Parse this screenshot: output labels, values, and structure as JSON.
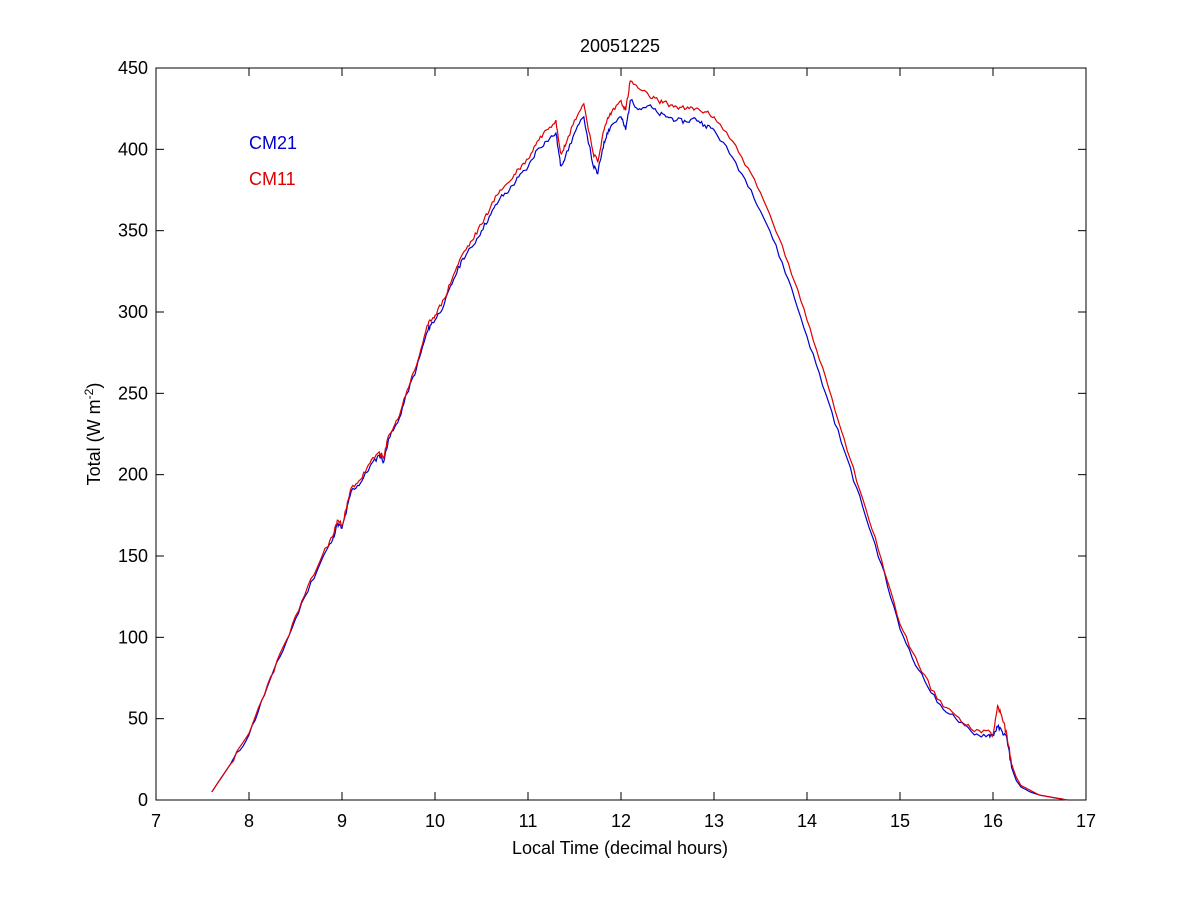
{
  "chart_data": {
    "type": "line",
    "title": "20051225",
    "xlabel": "Local Time (decimal hours)",
    "ylabel": {
      "prefix": "Total (W m",
      "superscript": "-2",
      "suffix": ")"
    },
    "xlim": [
      7,
      17
    ],
    "ylim": [
      0,
      450
    ],
    "xticks": [
      7,
      8,
      9,
      10,
      11,
      12,
      13,
      14,
      15,
      16,
      17
    ],
    "yticks": [
      0,
      50,
      100,
      150,
      200,
      250,
      300,
      350,
      400,
      450
    ],
    "grid": false,
    "legend_position": "top-left",
    "series": [
      {
        "name": "CM21",
        "color": "#0000cc",
        "x": [
          7.6,
          7.8,
          8.0,
          8.2,
          8.4,
          8.6,
          8.8,
          8.9,
          8.95,
          9.0,
          9.05,
          9.1,
          9.2,
          9.3,
          9.4,
          9.45,
          9.5,
          9.6,
          9.7,
          9.8,
          9.9,
          9.95,
          10.0,
          10.1,
          10.2,
          10.3,
          10.4,
          10.5,
          10.6,
          10.7,
          10.8,
          10.9,
          11.0,
          11.1,
          11.2,
          11.3,
          11.35,
          11.4,
          11.5,
          11.6,
          11.7,
          11.75,
          11.8,
          11.85,
          11.9,
          12.0,
          12.05,
          12.1,
          12.2,
          12.3,
          12.4,
          12.5,
          12.6,
          12.7,
          12.8,
          12.9,
          13.0,
          13.2,
          13.4,
          13.6,
          13.8,
          14.0,
          14.2,
          14.4,
          14.6,
          14.8,
          15.0,
          15.2,
          15.4,
          15.6,
          15.8,
          15.95,
          16.0,
          16.05,
          16.1,
          16.15,
          16.2,
          16.25,
          16.3,
          16.4,
          16.5,
          16.6,
          16.7,
          16.8
        ],
        "y": [
          5,
          22,
          40,
          70,
          97,
          125,
          150,
          160,
          170,
          167,
          178,
          190,
          195,
          205,
          212,
          208,
          222,
          232,
          250,
          265,
          285,
          292,
          295,
          305,
          320,
          333,
          340,
          350,
          360,
          370,
          375,
          383,
          389,
          400,
          405,
          410,
          390,
          395,
          410,
          420,
          390,
          385,
          400,
          410,
          415,
          420,
          412,
          430,
          425,
          427,
          422,
          420,
          418,
          417,
          419,
          415,
          412,
          395,
          375,
          350,
          320,
          285,
          250,
          215,
          180,
          145,
          105,
          80,
          60,
          50,
          40,
          40,
          40,
          45,
          42,
          38,
          20,
          12,
          8,
          5,
          3,
          2,
          1,
          0
        ],
        "seed": 11
      },
      {
        "name": "CM11",
        "color": "#dd0000",
        "x": [
          7.6,
          7.8,
          8.0,
          8.2,
          8.4,
          8.6,
          8.8,
          8.9,
          8.95,
          9.0,
          9.05,
          9.1,
          9.2,
          9.3,
          9.4,
          9.45,
          9.5,
          9.6,
          9.7,
          9.8,
          9.9,
          9.95,
          10.0,
          10.1,
          10.2,
          10.3,
          10.4,
          10.5,
          10.6,
          10.7,
          10.8,
          10.9,
          11.0,
          11.1,
          11.2,
          11.3,
          11.35,
          11.4,
          11.5,
          11.6,
          11.7,
          11.75,
          11.8,
          11.85,
          11.9,
          12.0,
          12.05,
          12.1,
          12.2,
          12.3,
          12.4,
          12.5,
          12.6,
          12.7,
          12.8,
          12.9,
          13.0,
          13.2,
          13.4,
          13.6,
          13.8,
          14.0,
          14.2,
          14.4,
          14.6,
          14.8,
          15.0,
          15.2,
          15.4,
          15.6,
          15.8,
          15.95,
          16.0,
          16.05,
          16.1,
          16.15,
          16.2,
          16.25,
          16.3,
          16.4,
          16.5,
          16.6,
          16.7,
          16.8
        ],
        "y": [
          5,
          22,
          41,
          71,
          98,
          126,
          152,
          162,
          172,
          169,
          180,
          192,
          197,
          207,
          214,
          210,
          224,
          234,
          252,
          267,
          288,
          295,
          298,
          308,
          323,
          336,
          344,
          354,
          365,
          375,
          380,
          388,
          394,
          405,
          412,
          418,
          398,
          402,
          418,
          428,
          398,
          392,
          408,
          418,
          423,
          430,
          424,
          442,
          437,
          433,
          430,
          428,
          426,
          425,
          425,
          423,
          420,
          405,
          385,
          360,
          330,
          295,
          260,
          222,
          185,
          148,
          108,
          83,
          62,
          52,
          42,
          43,
          40,
          58,
          50,
          40,
          22,
          14,
          9,
          6,
          3,
          2,
          1,
          0
        ],
        "seed": 23
      }
    ]
  }
}
